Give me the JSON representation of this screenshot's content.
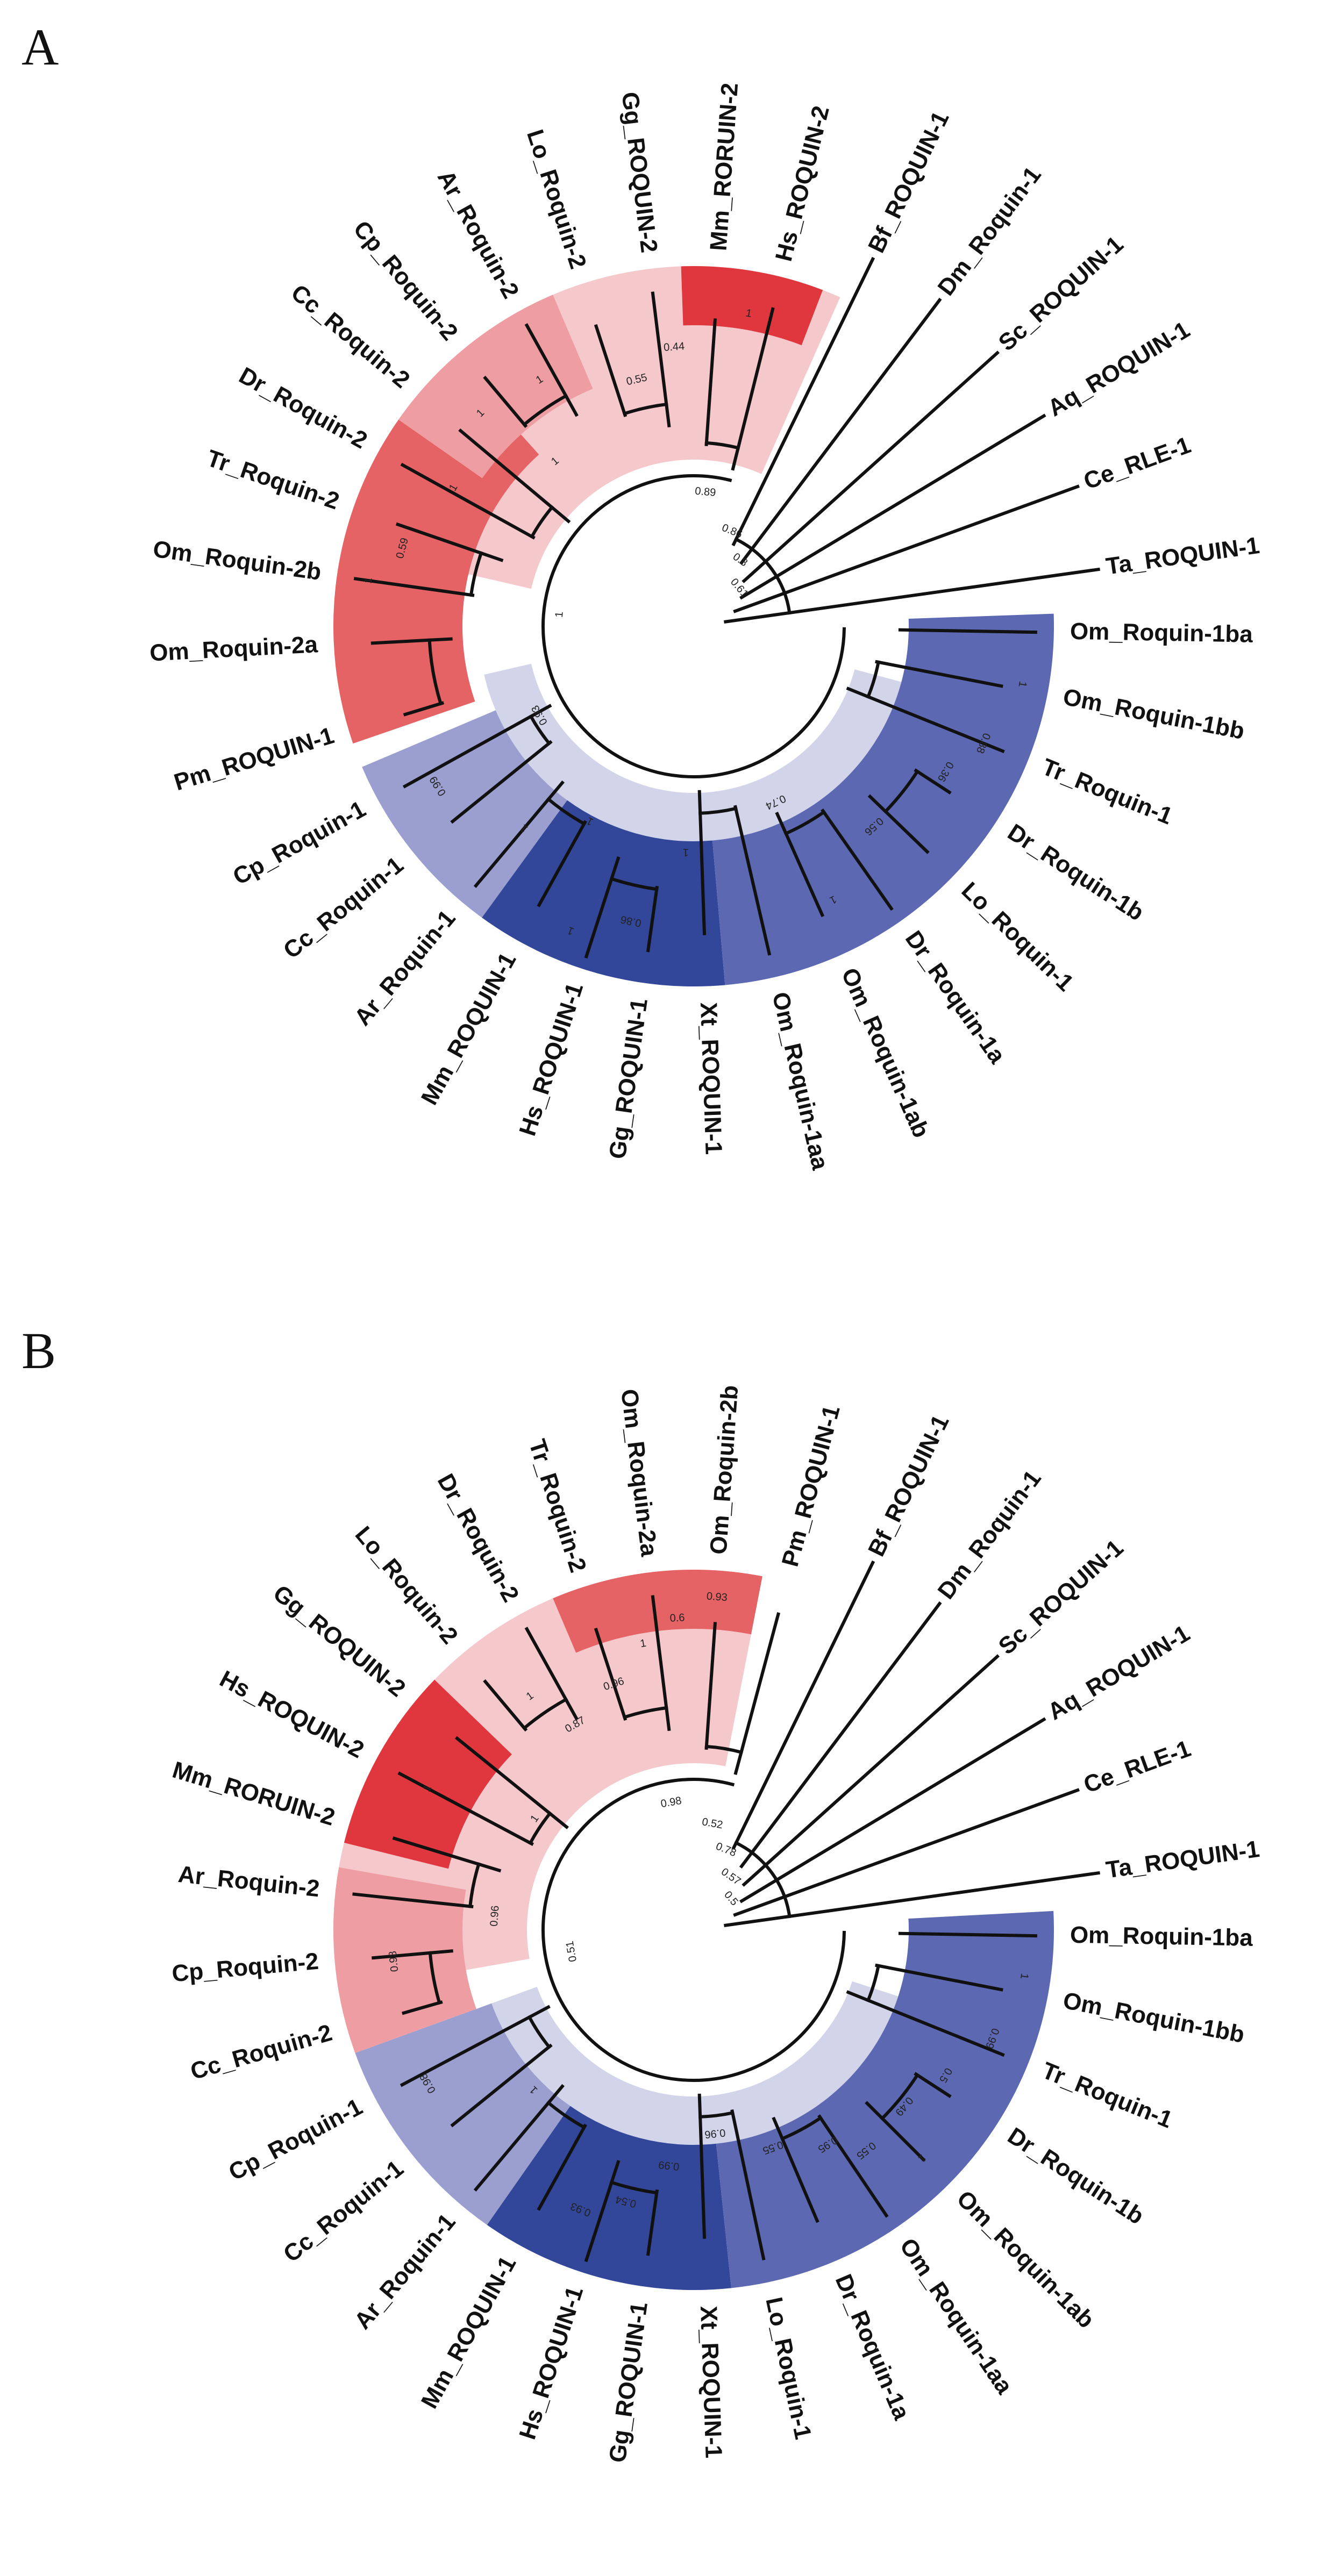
{
  "colors": {
    "red_dark": "#e0373f",
    "red_mid": "#e56265",
    "red_light": "#ee9ea3",
    "red_pale": "#f5c9cc",
    "blue_dark": "#33479a",
    "blue_mid": "#5c68b1",
    "blue_light": "#9a9fcf",
    "blue_pale": "#d2d4ea",
    "line": "#111111"
  },
  "panels": [
    {
      "letter": "A",
      "leaves": [
        {
          "label": "Ta_ROQUIN-1",
          "angle": -8
        },
        {
          "label": "Ce_RLE-1",
          "angle": -20
        },
        {
          "label": "Aq_ROQUIN-1",
          "angle": -31
        },
        {
          "label": "Sc_ROQUIN-1",
          "angle": -42
        },
        {
          "label": "Dm_Roquin-1",
          "angle": -53
        },
        {
          "label": "Bf_ROQUIN-1",
          "angle": -64
        },
        {
          "label": "Hs_ROQUIN-2",
          "angle": -76
        },
        {
          "label": "Mm_RORUIN-2",
          "angle": -86
        },
        {
          "label": "Gg_ROQUIN-2",
          "angle": -97
        },
        {
          "label": "Lo_Roquin-2",
          "angle": -108
        },
        {
          "label": "Ar_Roquin-2",
          "angle": -119
        },
        {
          "label": "Cp_Roquin-2",
          "angle": -130
        },
        {
          "label": "Cc_Roquin-2",
          "angle": -140
        },
        {
          "label": "Dr_Roquin-2",
          "angle": -151
        },
        {
          "label": "Tr_Roquin-2",
          "angle": -161
        },
        {
          "label": "Om_Roquin-2b",
          "angle": -172
        },
        {
          "label": "Om_Roquin-2a",
          "angle": 177
        },
        {
          "label": "Pm_ROQUIN-1",
          "angle": 163
        },
        {
          "label": "Cp_Roquin-1",
          "angle": 151
        },
        {
          "label": "Cc_Roquin-1",
          "angle": 141
        },
        {
          "label": "Ar_Roquin-1",
          "angle": 130
        },
        {
          "label": "Mm_ROQUIN-1",
          "angle": 119
        },
        {
          "label": "Hs_ROQUIN-1",
          "angle": 108
        },
        {
          "label": "Gg_ROQUIN-1",
          "angle": 98
        },
        {
          "label": "Xt_ROQUIN-1",
          "angle": 88
        },
        {
          "label": "Om_Roquin-1aa",
          "angle": 77
        },
        {
          "label": "Om_Roquin-1ab",
          "angle": 66
        },
        {
          "label": "Dr_Roquin-1a",
          "angle": 55
        },
        {
          "label": "Lo_Roquin-1",
          "angle": 44
        },
        {
          "label": "Dr_Roquin-1b",
          "angle": 33
        },
        {
          "label": "Tr_Roquin-1",
          "angle": 22
        },
        {
          "label": "Om_Roquin-1bb",
          "angle": 11
        },
        {
          "label": "Om_Roquin-1ba",
          "angle": 1
        }
      ],
      "sectors": [
        {
          "from": -167,
          "to": -66,
          "r1": 310,
          "r2": 670,
          "color": "red_pale"
        },
        {
          "from": 161,
          "to": -132,
          "r1": 430,
          "r2": 670,
          "color": "red_mid"
        },
        {
          "from": -145,
          "to": -113,
          "r1": 480,
          "r2": 670,
          "color": "red_light"
        },
        {
          "from": -92,
          "to": -69,
          "r1": 560,
          "r2": 670,
          "color": "red_dark"
        },
        {
          "from": 15,
          "to": 167,
          "r1": 310,
          "r2": 400,
          "color": "blue_pale"
        },
        {
          "from": 126,
          "to": 157,
          "r1": 400,
          "r2": 670,
          "color": "blue_light"
        },
        {
          "from": 85,
          "to": 126,
          "r1": 400,
          "r2": 670,
          "color": "blue_dark"
        },
        {
          "from": -2,
          "to": 85,
          "r1": 400,
          "r2": 670,
          "color": "blue_mid"
        }
      ],
      "supports": [
        {
          "text": "1",
          "angle": -172,
          "r": 610
        },
        {
          "text": "0.59",
          "angle": -165,
          "r": 560
        },
        {
          "text": "1",
          "angle": -150,
          "r": 515
        },
        {
          "text": "1",
          "angle": -135,
          "r": 560
        },
        {
          "text": "1",
          "angle": -122,
          "r": 540
        },
        {
          "text": "0.55",
          "angle": -103,
          "r": 470
        },
        {
          "text": "0.44",
          "angle": -94,
          "r": 520
        },
        {
          "text": "1",
          "angle": -80,
          "r": 590
        },
        {
          "text": "1",
          "angle": -130,
          "r": 400
        },
        {
          "text": "1",
          "angle": -175,
          "r": 250
        },
        {
          "text": "0.89",
          "angle": -85,
          "r": 250
        },
        {
          "text": "0.86",
          "angle": -68,
          "r": 190
        },
        {
          "text": "0.8",
          "angle": -55,
          "r": 150
        },
        {
          "text": "0.61",
          "angle": -40,
          "r": 110
        },
        {
          "text": "0.93",
          "angle": 150,
          "r": 330
        },
        {
          "text": "1",
          "angle": 118,
          "r": 410
        },
        {
          "text": "0.99",
          "angle": 148,
          "r": 560
        },
        {
          "text": "1",
          "angle": 130,
          "r": 490
        },
        {
          "text": "0.86",
          "angle": 102,
          "r": 560
        },
        {
          "text": "1",
          "angle": 112,
          "r": 610
        },
        {
          "text": "1",
          "angle": 92,
          "r": 420
        },
        {
          "text": "0.74",
          "angle": 65,
          "r": 360
        },
        {
          "text": "1",
          "angle": 63,
          "r": 570
        },
        {
          "text": "0.56",
          "angle": 48,
          "r": 500
        },
        {
          "text": "0.36",
          "angle": 30,
          "r": 540
        },
        {
          "text": "0.88",
          "angle": 22,
          "r": 580
        },
        {
          "text": "1",
          "angle": 10,
          "r": 620
        }
      ]
    },
    {
      "letter": "B",
      "leaves": [
        {
          "label": "Ta_ROQUIN-1",
          "angle": -8
        },
        {
          "label": "Ce_RLE-1",
          "angle": -20
        },
        {
          "label": "Aq_ROQUIN-1",
          "angle": -31
        },
        {
          "label": "Sc_ROQUIN-1",
          "angle": -42
        },
        {
          "label": "Dm_Roquin-1",
          "angle": -53
        },
        {
          "label": "Bf_ROQUIN-1",
          "angle": -64
        },
        {
          "label": "Pm_ROQUIN-1",
          "angle": -75
        },
        {
          "label": "Om_Roquin-2b",
          "angle": -86
        },
        {
          "label": "Om_Roquin-2a",
          "angle": -97
        },
        {
          "label": "Tr_Roquin-2",
          "angle": -108
        },
        {
          "label": "Dr_Roquin-2",
          "angle": -119
        },
        {
          "label": "Lo_Roquin-2",
          "angle": -130
        },
        {
          "label": "Gg_ROQUIN-2",
          "angle": -141
        },
        {
          "label": "Hs_ROQUIN-2",
          "angle": -152
        },
        {
          "label": "Mm_RORUIN-2",
          "angle": -163
        },
        {
          "label": "Ar_Roquin-2",
          "angle": -174
        },
        {
          "label": "Cp_Roquin-2",
          "angle": 175
        },
        {
          "label": "Cc_Roquin-2",
          "angle": 164
        },
        {
          "label": "Cp_Roquin-1",
          "angle": 152
        },
        {
          "label": "Cc_Roquin-1",
          "angle": 141
        },
        {
          "label": "Ar_Roquin-1",
          "angle": 130
        },
        {
          "label": "Mm_ROQUIN-1",
          "angle": 119
        },
        {
          "label": "Hs_ROQUIN-1",
          "angle": 108
        },
        {
          "label": "Gg_ROQUIN-1",
          "angle": 98
        },
        {
          "label": "Xt_ROQUIN-1",
          "angle": 88
        },
        {
          "label": "Lo_Roquin-1",
          "angle": 78
        },
        {
          "label": "Dr_Roquin-1a",
          "angle": 67
        },
        {
          "label": "Om_Roquin-1aa",
          "angle": 56
        },
        {
          "label": "Om_Roquin-1ab",
          "angle": 45
        },
        {
          "label": "Dr_Roquin-1b",
          "angle": 33
        },
        {
          "label": "Tr_Roquin-1",
          "angle": 22
        },
        {
          "label": "Om_Roquin-1bb",
          "angle": 11
        },
        {
          "label": "Om_Roquin-1ba",
          "angle": 1
        }
      ],
      "sectors": [
        {
          "from": 170,
          "to": -79,
          "r1": 310,
          "r2": 670,
          "color": "red_pale"
        },
        {
          "from": -113,
          "to": -79,
          "r1": 560,
          "r2": 670,
          "color": "red_mid"
        },
        {
          "from": -166,
          "to": -136,
          "r1": 470,
          "r2": 670,
          "color": "red_dark"
        },
        {
          "from": 160,
          "to": -170,
          "r1": 430,
          "r2": 670,
          "color": "red_light"
        },
        {
          "from": 18,
          "to": 160,
          "r1": 310,
          "r2": 400,
          "color": "blue_pale"
        },
        {
          "from": 125,
          "to": 160,
          "r1": 400,
          "r2": 670,
          "color": "blue_light"
        },
        {
          "from": 84,
          "to": 125,
          "r1": 400,
          "r2": 670,
          "color": "blue_dark"
        },
        {
          "from": -3,
          "to": 84,
          "r1": 400,
          "r2": 670,
          "color": "blue_mid"
        }
      ],
      "supports": [
        {
          "text": "0.93",
          "angle": -86,
          "r": 620
        },
        {
          "text": "0.6",
          "angle": -93,
          "r": 580
        },
        {
          "text": "1",
          "angle": -100,
          "r": 540
        },
        {
          "text": "0.96",
          "angle": -108,
          "r": 480
        },
        {
          "text": "0.87",
          "angle": -120,
          "r": 440
        },
        {
          "text": "1",
          "angle": -125,
          "r": 530
        },
        {
          "text": "1",
          "angle": -152,
          "r": 560
        },
        {
          "text": "1",
          "angle": -145,
          "r": 360
        },
        {
          "text": "0.96",
          "angle": -176,
          "r": 370
        },
        {
          "text": "0.98",
          "angle": 174,
          "r": 560
        },
        {
          "text": "0.51",
          "angle": 170,
          "r": 230
        },
        {
          "text": "0.98",
          "angle": -100,
          "r": 240
        },
        {
          "text": "0.52",
          "angle": -80,
          "r": 200
        },
        {
          "text": "0.78",
          "angle": -68,
          "r": 160
        },
        {
          "text": "0.57",
          "angle": -55,
          "r": 120
        },
        {
          "text": "0.5",
          "angle": -40,
          "r": 90
        },
        {
          "text": "1",
          "angle": 135,
          "r": 420
        },
        {
          "text": "0.98",
          "angle": 150,
          "r": 570
        },
        {
          "text": "0.93",
          "angle": 112,
          "r": 560
        },
        {
          "text": "0.54",
          "angle": 104,
          "r": 520
        },
        {
          "text": "0.99",
          "angle": 96,
          "r": 440
        },
        {
          "text": "0.96",
          "angle": 84,
          "r": 380
        },
        {
          "text": "0.55",
          "angle": 70,
          "r": 430
        },
        {
          "text": "0.95",
          "angle": 58,
          "r": 470
        },
        {
          "text": "0.55",
          "angle": 52,
          "r": 520
        },
        {
          "text": "0.49",
          "angle": 40,
          "r": 510
        },
        {
          "text": "0.5",
          "angle": 30,
          "r": 540
        },
        {
          "text": "0.99",
          "angle": 20,
          "r": 590
        },
        {
          "text": "1",
          "angle": 8,
          "r": 620
        },
        {
          "text": "1",
          "angle": 45,
          "r": 600
        }
      ]
    }
  ]
}
